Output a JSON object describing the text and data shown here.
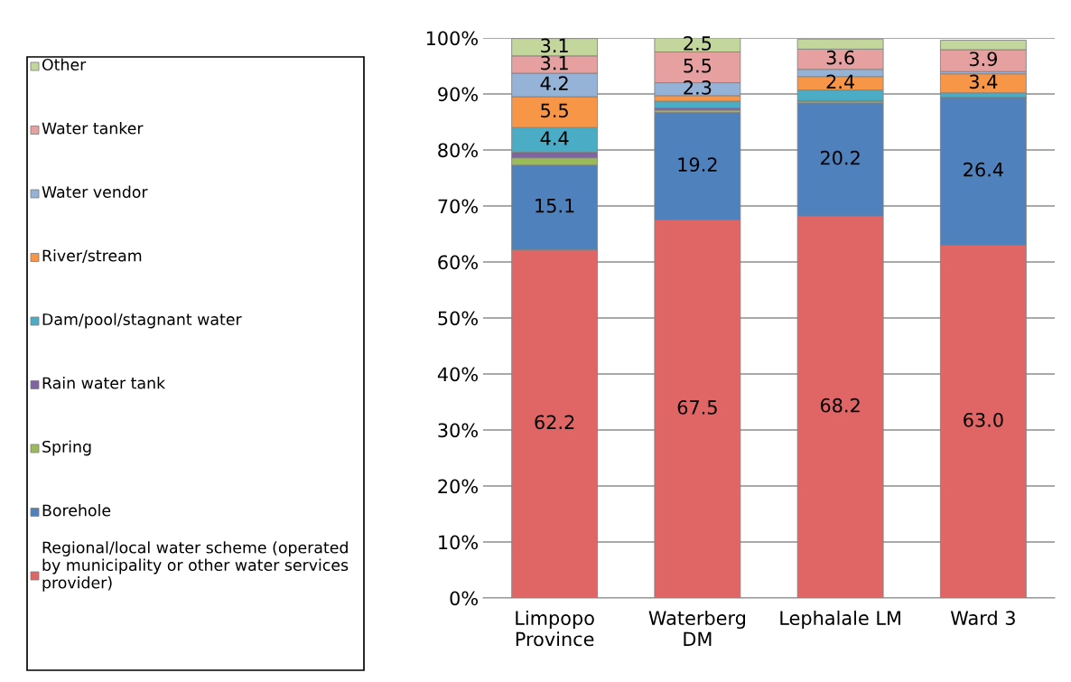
{
  "chart_data": {
    "type": "bar",
    "stacked": true,
    "categories": [
      "Limpopo\nProvince",
      "Waterberg\nDM",
      "Lephalale LM",
      "Ward 3"
    ],
    "series": [
      {
        "name": "Regional/local water scheme (operated by municipality or other water services provider)",
        "color": "#e06666",
        "values": [
          62.2,
          67.5,
          68.2,
          63.0
        ],
        "value_labels": [
          "62.2",
          "67.5",
          "68.2",
          "63.0"
        ]
      },
      {
        "name": "Borehole",
        "color": "#4f81bd",
        "values": [
          15.1,
          19.2,
          20.2,
          26.4
        ],
        "value_labels": [
          "15.1",
          "19.2",
          "20.2",
          "26.4"
        ]
      },
      {
        "name": "Spring",
        "color": "#9bbb59",
        "values": [
          1.3,
          0.4,
          0.3,
          null
        ]
      },
      {
        "name": "Rain water tank",
        "color": "#8064a2",
        "values": [
          1.0,
          0.4,
          0.1,
          null
        ]
      },
      {
        "name": "Dam/pool/stagnant water",
        "color": "#4bacc6",
        "values": [
          4.4,
          1.2,
          1.9,
          0.8
        ],
        "value_labels": [
          "4.4",
          null,
          null,
          null
        ]
      },
      {
        "name": "River/stream",
        "color": "#f79646",
        "values": [
          5.5,
          1.0,
          2.4,
          3.4
        ],
        "value_labels": [
          "5.5",
          null,
          "2.4",
          "3.4"
        ]
      },
      {
        "name": "Water vendor",
        "color": "#95b3d7",
        "values": [
          4.2,
          2.3,
          1.3,
          0.4
        ],
        "value_labels": [
          "4.2",
          "2.3",
          null,
          null
        ]
      },
      {
        "name": "Water tanker",
        "color": "#e6a0a0",
        "values": [
          3.1,
          5.5,
          3.6,
          3.9
        ],
        "value_labels": [
          "3.1",
          "5.5",
          "3.6",
          "3.9"
        ]
      },
      {
        "name": "Other",
        "color": "#c3d69b",
        "values": [
          3.1,
          2.5,
          1.8,
          1.7
        ],
        "value_labels": [
          "3.1",
          "2.5",
          null,
          null
        ]
      }
    ],
    "ylim": [
      0,
      100
    ],
    "yticks": [
      {
        "value": 0,
        "label": "0%"
      },
      {
        "value": 10,
        "label": "10%"
      },
      {
        "value": 20,
        "label": "20%"
      },
      {
        "value": 30,
        "label": "30%"
      },
      {
        "value": 40,
        "label": "40%"
      },
      {
        "value": 50,
        "label": "50%"
      },
      {
        "value": 60,
        "label": "60%"
      },
      {
        "value": 70,
        "label": "70%"
      },
      {
        "value": 80,
        "label": "80%"
      },
      {
        "value": 90,
        "label": "90%"
      },
      {
        "value": 100,
        "label": "100%"
      }
    ],
    "grid": "y",
    "legend": "left"
  }
}
